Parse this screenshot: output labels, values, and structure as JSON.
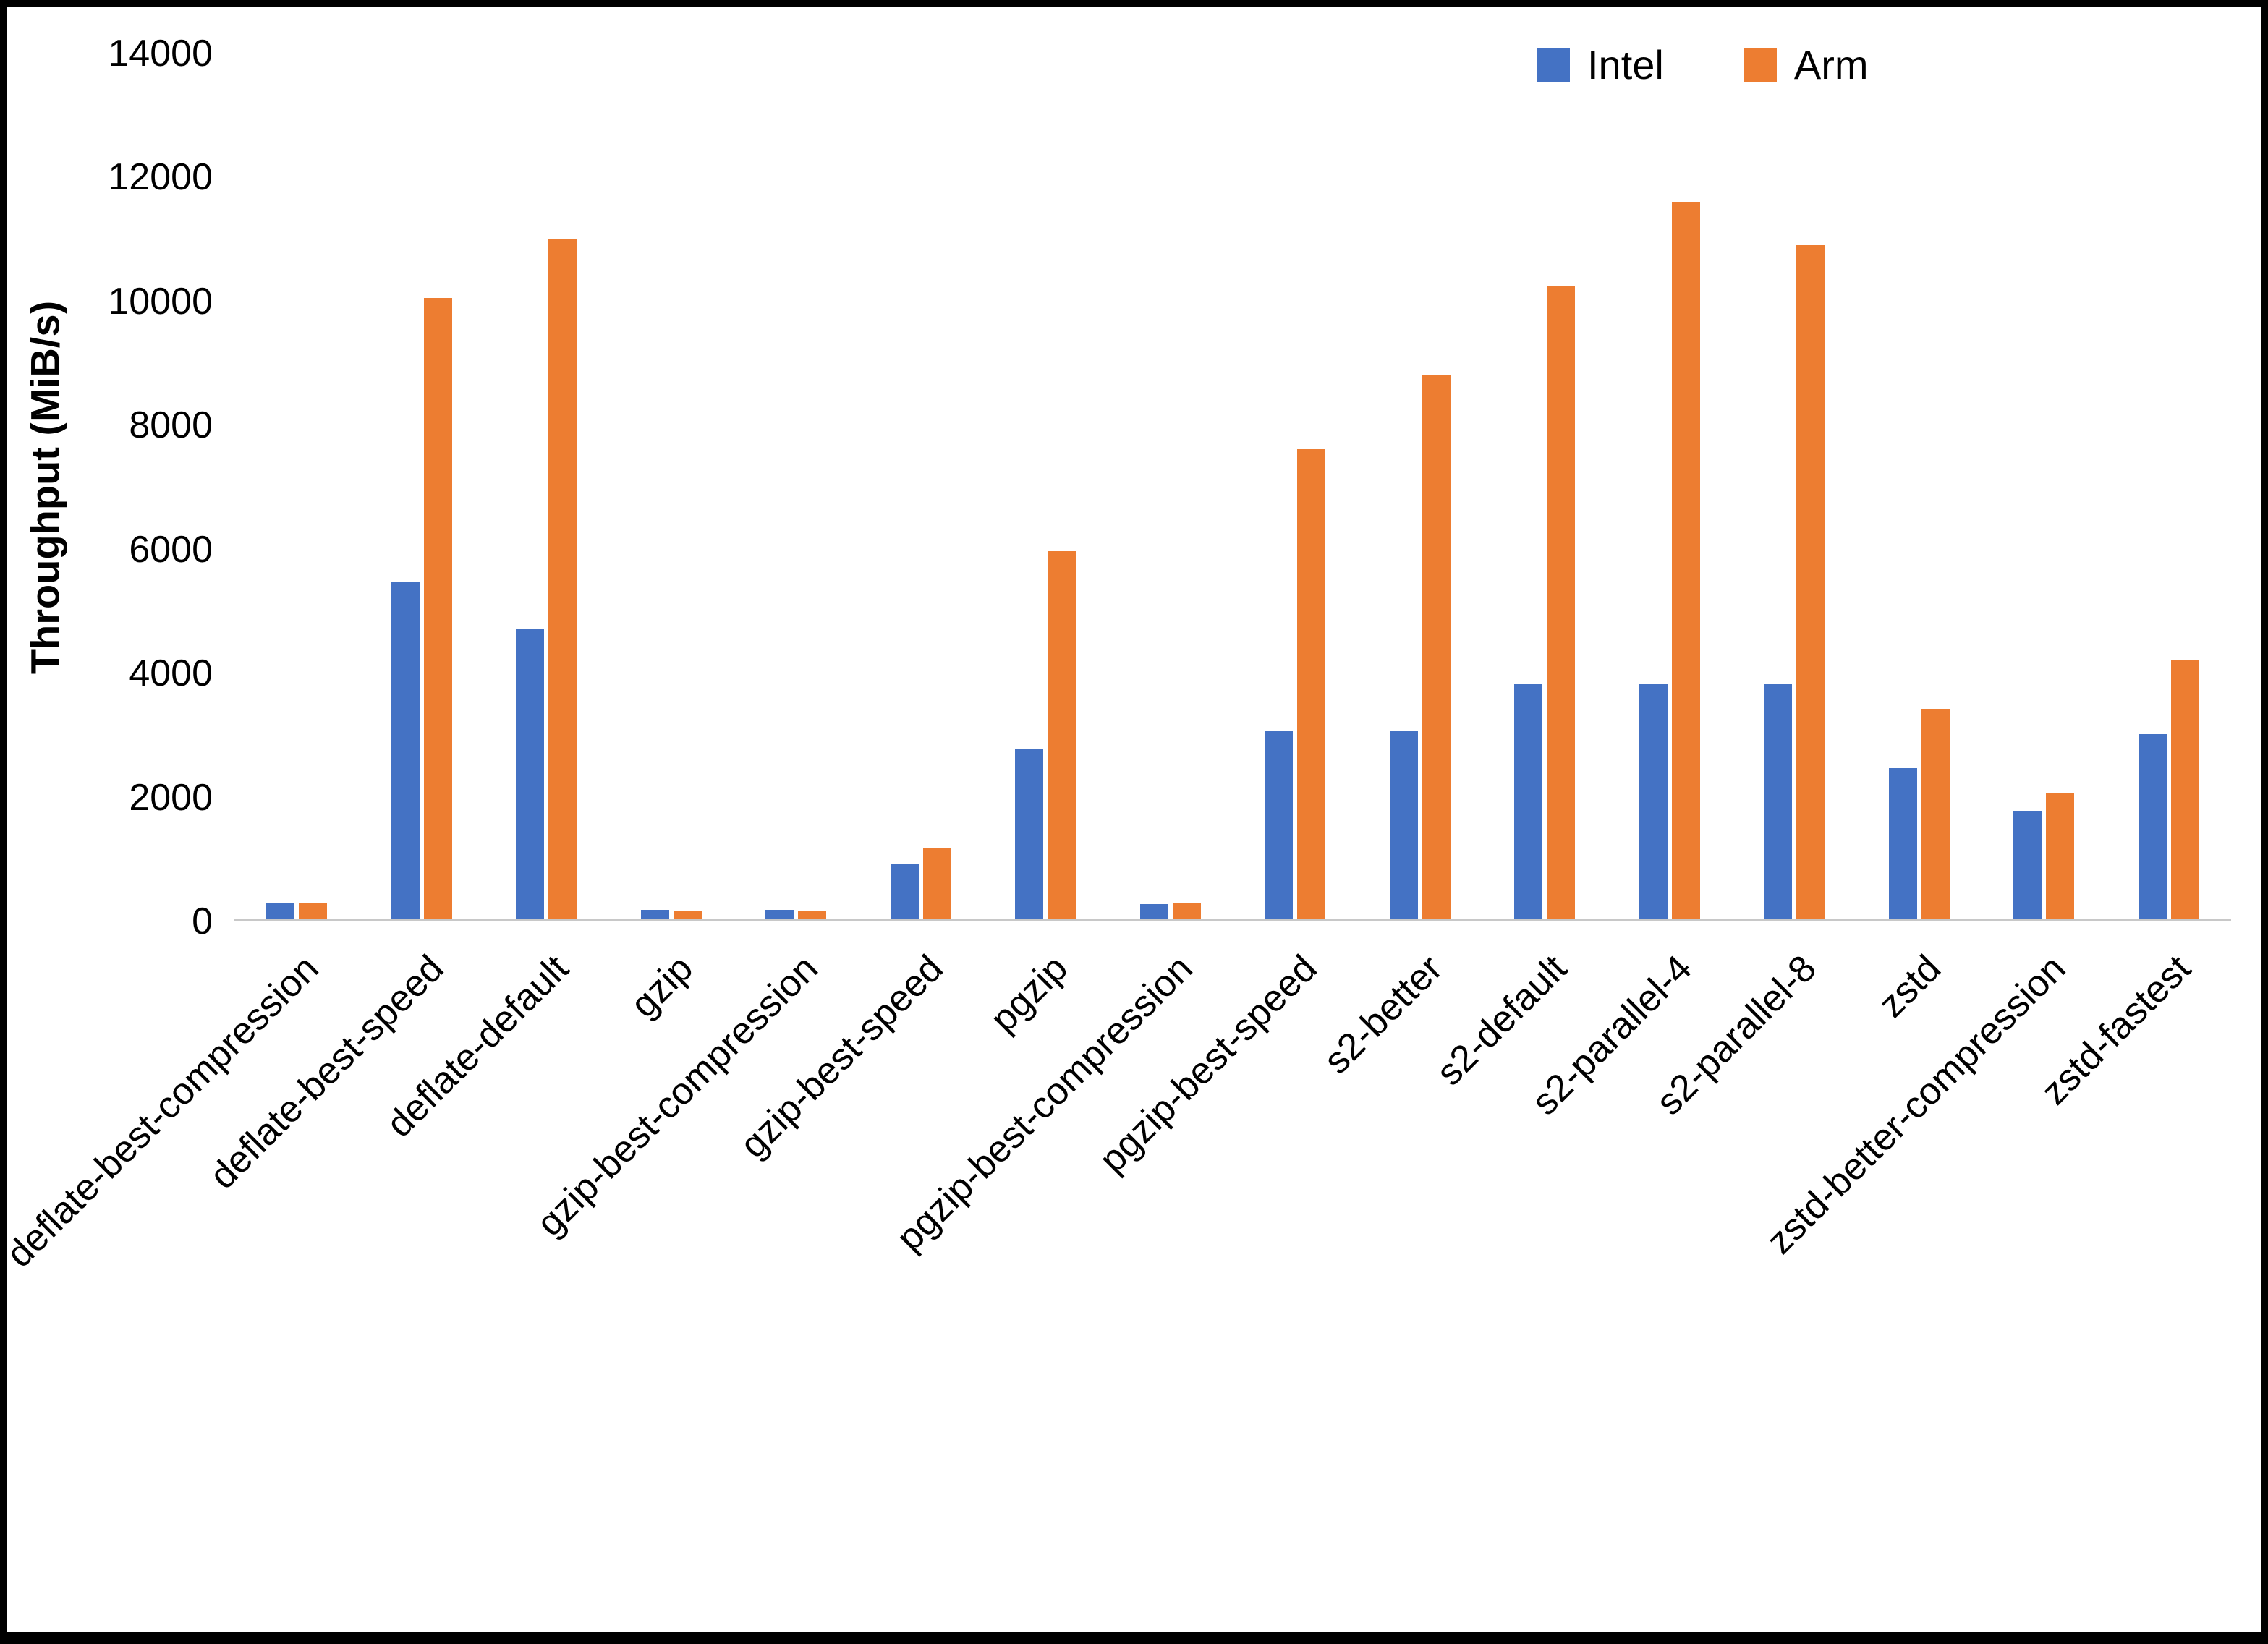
{
  "chart_data": {
    "type": "bar",
    "title": "",
    "xlabel": "",
    "ylabel": "Throughput (MiB/s)",
    "ylim": [
      0,
      14000
    ],
    "yticks": [
      0,
      2000,
      4000,
      6000,
      8000,
      10000,
      12000,
      14000
    ],
    "grid": false,
    "legend_position": "top-right",
    "categories": [
      "deflate-best-compression",
      "deflate-best-speed",
      "deflate-default",
      "gzip",
      "gzip-best-compression",
      "gzip-best-speed",
      "pgzip",
      "pgzip-best-compression",
      "pgzip-best-speed",
      "s2-better",
      "s2-default",
      "s2-parallel-4",
      "s2-parallel-8",
      "zstd",
      "zstd-better-compression",
      "zstd-fastest"
    ],
    "series": [
      {
        "name": "Intel",
        "color": "#4472C4",
        "values": [
          270,
          5450,
          4700,
          150,
          150,
          900,
          2750,
          250,
          3050,
          3050,
          3800,
          3800,
          3800,
          2450,
          1750,
          3000
        ]
      },
      {
        "name": "Arm",
        "color": "#ED7D31",
        "values": [
          260,
          10050,
          11000,
          130,
          130,
          1150,
          5950,
          260,
          7600,
          8800,
          10250,
          11600,
          10900,
          3400,
          2050,
          4200
        ]
      }
    ]
  },
  "colors": {
    "intel": "#4472C4",
    "arm": "#ED7D31",
    "axis_line": "#c8c8c8",
    "text": "#000000",
    "background": "#ffffff",
    "frame_border": "#000000"
  }
}
